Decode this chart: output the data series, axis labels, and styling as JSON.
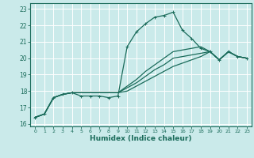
{
  "title": "",
  "xlabel": "Humidex (Indice chaleur)",
  "bg_color": "#caeaea",
  "grid_color": "#ffffff",
  "line_color": "#1a6b5a",
  "xlim": [
    -0.5,
    23.5
  ],
  "ylim": [
    15.85,
    23.35
  ],
  "xticks": [
    0,
    1,
    2,
    3,
    4,
    5,
    6,
    7,
    8,
    9,
    10,
    11,
    12,
    13,
    14,
    15,
    16,
    17,
    18,
    19,
    20,
    21,
    22,
    23
  ],
  "yticks": [
    16,
    17,
    18,
    19,
    20,
    21,
    22,
    23
  ],
  "series": [
    [
      16.4,
      16.6,
      17.6,
      17.8,
      17.9,
      17.7,
      17.7,
      17.7,
      17.6,
      17.7,
      20.7,
      21.6,
      22.1,
      22.5,
      22.6,
      22.8,
      21.7,
      21.2,
      20.6,
      20.4,
      19.9,
      20.4,
      20.1,
      20.0
    ],
    [
      16.4,
      16.6,
      17.6,
      17.8,
      17.9,
      17.9,
      17.9,
      17.9,
      17.9,
      17.9,
      18.3,
      18.7,
      19.2,
      19.6,
      20.0,
      20.4,
      20.5,
      20.6,
      20.7,
      20.4,
      19.9,
      20.4,
      20.1,
      20.0
    ],
    [
      16.4,
      16.6,
      17.6,
      17.8,
      17.9,
      17.9,
      17.9,
      17.9,
      17.9,
      17.9,
      18.2,
      18.5,
      18.9,
      19.3,
      19.6,
      20.0,
      20.1,
      20.2,
      20.3,
      20.4,
      19.9,
      20.4,
      20.1,
      20.0
    ],
    [
      16.4,
      16.6,
      17.6,
      17.8,
      17.9,
      17.9,
      17.9,
      17.9,
      17.9,
      17.9,
      18.0,
      18.3,
      18.6,
      18.9,
      19.2,
      19.5,
      19.7,
      19.9,
      20.1,
      20.4,
      19.9,
      20.4,
      20.1,
      20.0
    ]
  ]
}
